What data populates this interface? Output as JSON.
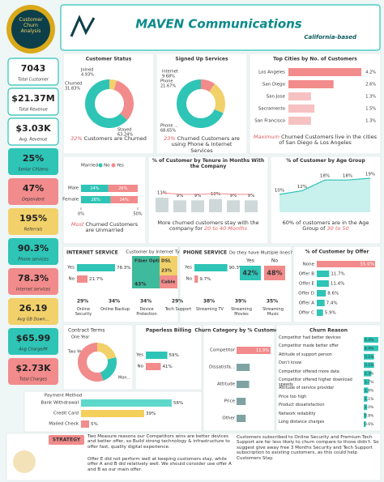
{
  "header": {
    "title": "MAVEN Communications",
    "subtitle": "California-based",
    "logo": "Customer Churn Analysis"
  },
  "kpis": [
    {
      "value": "7043",
      "label": "Total Customer"
    },
    {
      "value": "$21.37M",
      "label": "Total Revenue"
    },
    {
      "value": "$3.03K",
      "label": "Avg. Revenue"
    },
    {
      "value": "25%",
      "label": "Senior Citizens"
    },
    {
      "value": "47%",
      "label": "Dependent"
    },
    {
      "value": "195%",
      "label": "Referrals"
    },
    {
      "value": "90.3%",
      "label": "Phone services"
    },
    {
      "value": "78.3%",
      "label": "Internet services"
    },
    {
      "value": "26.19",
      "label": "Avg GB Down..."
    },
    {
      "value": "$65.99",
      "label": "Avg Charge/M"
    },
    {
      "value": "$2.73K",
      "label": "Total Charges"
    }
  ],
  "customer_status": {
    "title": "Customer Status",
    "items": [
      {
        "name": "Joined",
        "value": 4.93,
        "label": "4.93%"
      },
      {
        "name": "Churned",
        "value": 31.83,
        "label": "31.83%"
      },
      {
        "name": "Stayed",
        "value": 63.24,
        "label": "63.24%"
      }
    ],
    "caption_value": "32%",
    "caption": "Customers are Churned"
  },
  "signed_up": {
    "title": "Signed Up Services",
    "items": [
      {
        "name": "Internet",
        "value": 9.68,
        "label": "9.68%"
      },
      {
        "name": "Phone",
        "value": 21.67,
        "label": "21.67%"
      },
      {
        "name": "Phone ...",
        "value": 68.65,
        "label": "68.65%"
      }
    ],
    "caption_value": "23%",
    "caption": "Churned Customers are using Phone & Internet Services"
  },
  "top_cities": {
    "title": "Top Cities by No. of Customers",
    "items": [
      {
        "name": "Los Angeles",
        "value": 4.2,
        "label": "4.2%"
      },
      {
        "name": "San Diego",
        "value": 2.6,
        "label": "2.6%"
      },
      {
        "name": "San Jose",
        "value": 1.3,
        "label": "1.3%"
      },
      {
        "name": "Sacramento",
        "value": 1.5,
        "label": "1.5%"
      },
      {
        "name": "San Francisco",
        "value": 1.3,
        "label": "1.3%"
      }
    ],
    "caption_value": "Maximum",
    "caption": "Churned Customers live in the cities of San Diego & Los Angeles"
  },
  "married": {
    "legend_title": "Married",
    "series": [
      {
        "name": "No",
        "color": "#2ec4b6"
      },
      {
        "name": "Yes",
        "color": "#f28b8b"
      }
    ],
    "rows": [
      {
        "name": "Male",
        "values": [
          24,
          26
        ],
        "labels": [
          "24%",
          "26%"
        ]
      },
      {
        "name": "Female",
        "values": [
          26,
          24
        ],
        "labels": [
          "26%",
          "24%"
        ]
      }
    ],
    "xlim": [
      0,
      50
    ],
    "xticks": [
      {
        "value": 0,
        "label": "0%"
      },
      {
        "value": 50,
        "label": "50%"
      }
    ],
    "caption_value": "Most",
    "caption": "Churned Customers are Unmarried"
  },
  "tenure": {
    "title": "% of Customer by Tenure in Months With the Company",
    "values": [
      11,
      9,
      9,
      10,
      9,
      9
    ],
    "value_labels": [
      "11%",
      "9%",
      "9%",
      "10%",
      "9%",
      "9%"
    ],
    "caption": "More churned customers stay with the company for",
    "caption_value": "20 to 40 Months"
  },
  "age": {
    "title": "% of Customer by Age Group",
    "values": [
      10,
      12,
      18,
      18,
      19
    ],
    "value_labels": [
      "10%",
      "12%",
      "18%",
      "18%",
      "19%"
    ],
    "caption": "60% of customers are in the Age Group of",
    "caption_value": "30 to 50"
  },
  "internet_service": {
    "title": "INTERNET SERVICE",
    "items": [
      {
        "name": "Yes",
        "value": 78.3,
        "label": "78.3%"
      },
      {
        "name": "No",
        "value": 21.7,
        "label": "21.7%"
      }
    ]
  },
  "internet_type": {
    "title": "Customer by Internet Type",
    "items": [
      {
        "name": "Fiber Optic",
        "value": 43,
        "label": "43%"
      },
      {
        "name": "DSL",
        "value": 23,
        "label": "23%"
      },
      {
        "name": "Cable"
      }
    ]
  },
  "phone_service": {
    "title": "PHONE SERVICE",
    "items": [
      {
        "name": "Yes",
        "value": 90.3,
        "label": "90.3%"
      },
      {
        "name": "No",
        "value": 9.7,
        "label": "9.7%"
      }
    ]
  },
  "multiple_lines": {
    "title": "Do they have Multiple lines?",
    "items": [
      {
        "name": "Yes",
        "label": "42%"
      },
      {
        "name": "No",
        "label": "48%"
      }
    ]
  },
  "addons": [
    {
      "name": "Online Security",
      "label": "29%"
    },
    {
      "name": "Online Backup",
      "label": "34%"
    },
    {
      "name": "Device Protection",
      "label": "34%"
    },
    {
      "name": "Tech Support",
      "label": "29%"
    },
    {
      "name": "Streaming TV",
      "label": "38%"
    },
    {
      "name": "Streaming Movies",
      "label": "39%"
    },
    {
      "name": "Streaming Music",
      "label": "35%"
    }
  ],
  "offer": {
    "title": "% of Customer by Offer",
    "items": [
      {
        "name": "None",
        "value": 55.0,
        "label": "55.0%"
      },
      {
        "name": "Offer B",
        "value": 11.7,
        "label": "11.7%"
      },
      {
        "name": "Offer E",
        "value": 11.4,
        "label": "11.4%"
      },
      {
        "name": "Offer D",
        "value": 8.6,
        "label": "8.6%"
      },
      {
        "name": "Offer A",
        "value": 7.4,
        "label": "7.4%"
      },
      {
        "name": "Offer C",
        "value": 5.9,
        "label": "5.9%"
      }
    ]
  },
  "contract": {
    "title": "Contract Terms",
    "items": [
      {
        "name": "One Year",
        "value": 21
      },
      {
        "name": "Two Year",
        "value": 24
      },
      {
        "name": "Mon...",
        "value": 55
      }
    ]
  },
  "paperless": {
    "title": "Paperless Billing",
    "items": [
      {
        "name": "Yes",
        "value": 59,
        "label": "59%"
      },
      {
        "name": "No",
        "value": 41,
        "label": "41%"
      }
    ]
  },
  "churn_category": {
    "title": "Churn Category by % Customers",
    "items": [
      {
        "name": "Competitor",
        "value": 11.9,
        "label": "11.9%"
      },
      {
        "name": "Dissatisfa...",
        "value": 4.6
      },
      {
        "name": "Attitude",
        "value": 4.4
      },
      {
        "name": "Price",
        "value": 3.2
      },
      {
        "name": "Other",
        "value": 3.2
      }
    ]
  },
  "churn_reason": {
    "title": "Churn Reason",
    "items": [
      {
        "name": "Competitor had better devices",
        "value": 4.4,
        "label": "4.4%"
      },
      {
        "name": "Competitor made better offer",
        "value": 4.4,
        "label": "4.4%"
      },
      {
        "name": "Attitude of support person",
        "value": 3.1,
        "label": "3.1%"
      },
      {
        "name": "Don't know",
        "value": 3.1,
        "label": "3.1%"
      },
      {
        "name": "Competitor offered more data",
        "value": 2.3,
        "label": "2.3%"
      },
      {
        "name": "Competitor offered higher download speeds",
        "value": 1.7,
        "label": "1.7%"
      },
      {
        "name": "Attitude of service provider",
        "value": 1.4,
        "label": "1.4%"
      },
      {
        "name": "Price too high",
        "value": 1.1,
        "label": "1.1%"
      },
      {
        "name": "Product dissatisfaction",
        "value": 1.0,
        "label": "1.0%"
      },
      {
        "name": "Network reliability",
        "value": 0.8,
        "label": "0.8%"
      },
      {
        "name": "Long distance charges",
        "value": 0.6,
        "label": "0.6%"
      }
    ]
  },
  "payment": {
    "title": "Payment Method",
    "items": [
      {
        "name": "Bank Withdrawal",
        "value": 56,
        "label": "56%"
      },
      {
        "name": "Credit Card",
        "value": 39,
        "label": "39%"
      },
      {
        "name": "Mailed Check",
        "value": 5,
        "label": "5%"
      }
    ]
  },
  "strategy": {
    "label": "STRATEGY",
    "left": [
      "Two Measure reasons our Competitors wins are better devices and better offer, so Build strong technology & infrastructure to offer fast, quality digital experience.",
      "Offer E did not perform well at keeping customers stay, while offer A and B did relatively well. We should consider use offer A and B as our main offer."
    ],
    "right": [
      "Customers subscribed to Online Security and Premium Tech Support are far less likely to churn compare to those didn't. So suggest give away free 3 Months Security and Tech Support subscription to existing customers, as this could help Customers Stay."
    ]
  }
}
